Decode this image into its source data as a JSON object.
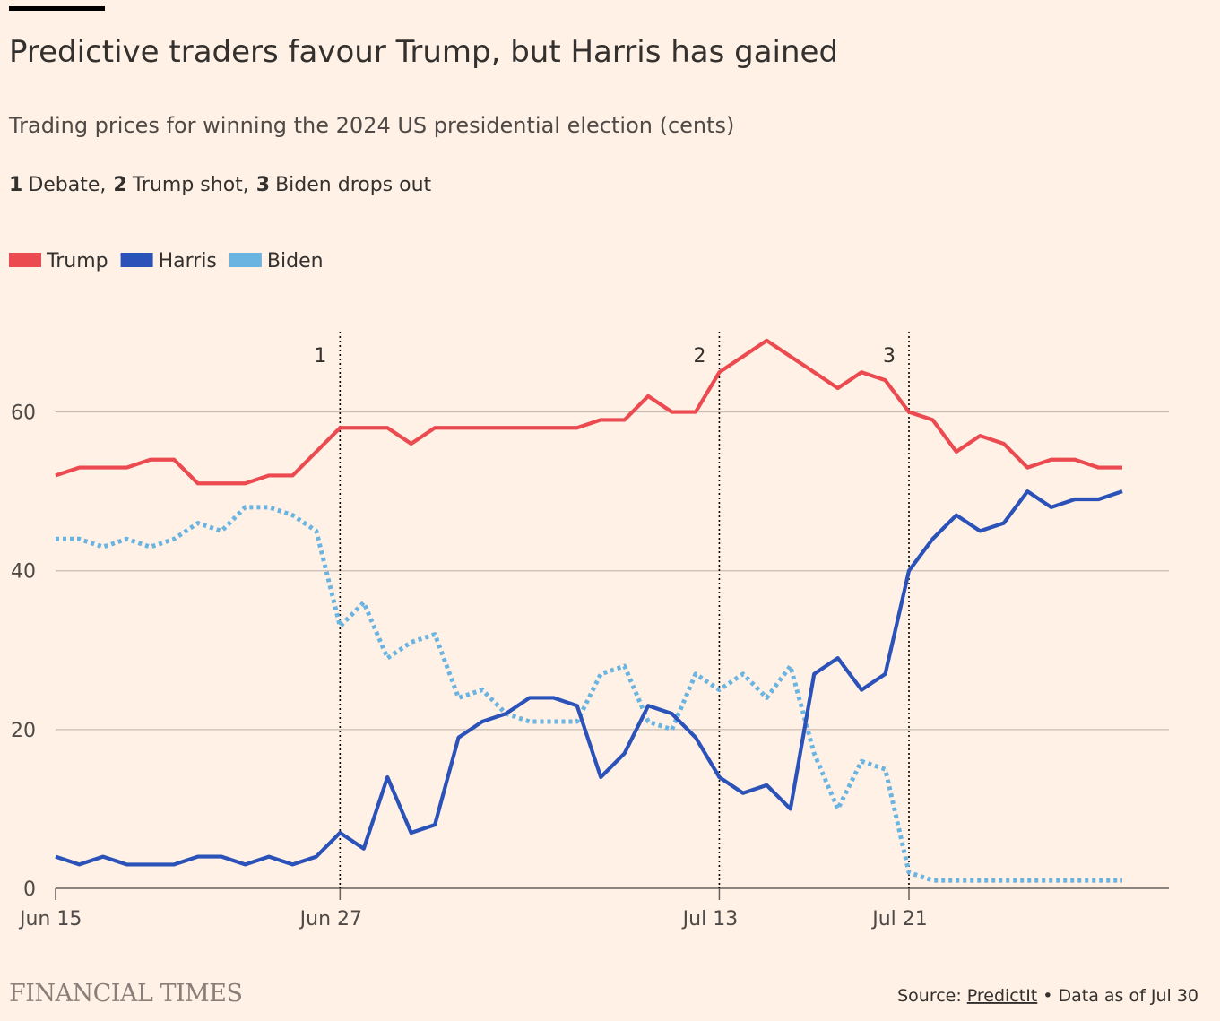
{
  "chart_data": {
    "type": "line",
    "title": "Predictive traders favour Trump, but Harris has gained",
    "subtitle": "Trading prices for winning the 2024 US presidential election (cents)",
    "notes": [
      {
        "key": "1",
        "text": "Debate,"
      },
      {
        "key": "2",
        "text": "Trump shot,"
      },
      {
        "key": "3",
        "text": "Biden drops out"
      }
    ],
    "categories": [
      "Jun 15",
      null,
      null,
      null,
      null,
      null,
      null,
      null,
      null,
      null,
      null,
      null,
      "Jun 27",
      null,
      null,
      null,
      null,
      null,
      null,
      null,
      null,
      null,
      null,
      null,
      null,
      null,
      null,
      null,
      "Jul 13",
      null,
      null,
      null,
      null,
      null,
      null,
      null,
      "Jul 21",
      null,
      null,
      null,
      null,
      null,
      null,
      null,
      null,
      null
    ],
    "series": [
      {
        "name": "Trump",
        "color": "#eb4b50",
        "dash": false,
        "values": [
          52,
          53,
          53,
          53,
          54,
          54,
          51,
          51,
          51,
          52,
          52,
          55,
          58,
          58,
          58,
          56,
          58,
          58,
          58,
          58,
          58,
          58,
          58,
          59,
          59,
          62,
          60,
          60,
          65,
          67,
          69,
          67,
          65,
          63,
          65,
          64,
          60,
          59,
          55,
          57,
          56,
          53,
          54,
          54,
          53,
          53
        ]
      },
      {
        "name": "Harris",
        "color": "#2b52b8",
        "dash": false,
        "values": [
          4,
          3,
          4,
          3,
          3,
          3,
          4,
          4,
          3,
          4,
          3,
          4,
          7,
          5,
          14,
          7,
          8,
          19,
          21,
          22,
          24,
          24,
          23,
          14,
          17,
          23,
          22,
          19,
          14,
          12,
          13,
          10,
          27,
          29,
          25,
          27,
          40,
          44,
          47,
          45,
          46,
          50,
          48,
          49,
          49,
          50
        ]
      },
      {
        "name": "Biden",
        "color": "#6ab4e2",
        "dash": true,
        "values": [
          44,
          44,
          43,
          44,
          43,
          44,
          46,
          45,
          48,
          48,
          47,
          45,
          33,
          36,
          29,
          31,
          32,
          24,
          25,
          22,
          21,
          21,
          21,
          27,
          28,
          21,
          20,
          27,
          25,
          27,
          24,
          28,
          17,
          10,
          16,
          15,
          2,
          1,
          1,
          1,
          1,
          1,
          1,
          1,
          1,
          1
        ]
      }
    ],
    "events": [
      {
        "label": "1",
        "x": "Jun 27"
      },
      {
        "label": "2",
        "x": "Jul 13"
      },
      {
        "label": "3",
        "x": "Jul 21"
      }
    ],
    "ylim": [
      0,
      70
    ],
    "yticks": [
      0,
      20,
      40,
      60
    ],
    "grid": true,
    "brand": "FINANCIAL TIMES",
    "source": {
      "prefix": "Source:",
      "link": "PredictIt",
      "suffix": "• Data as of Jul 30"
    }
  }
}
